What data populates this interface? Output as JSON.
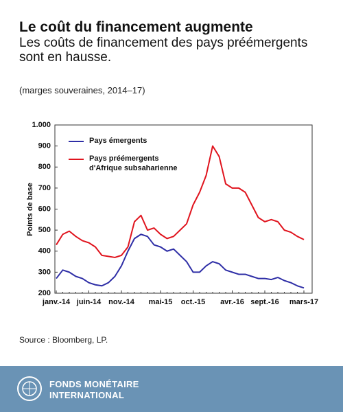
{
  "header": {
    "title": "Le coût du financement augmente",
    "subtitle": "Les coûts de financement des pays préémergents sont en hausse.",
    "note": "(marges souveraines, 2014–17)"
  },
  "chart_data": {
    "type": "line",
    "ylabel": "Points de base",
    "categories": [
      "janv.-14",
      null,
      null,
      null,
      null,
      "juin-14",
      null,
      null,
      null,
      null,
      "nov.-14",
      null,
      null,
      null,
      null,
      null,
      "mai-15",
      null,
      null,
      null,
      null,
      "oct.-15",
      null,
      null,
      null,
      null,
      null,
      "avr.-16",
      null,
      null,
      null,
      null,
      "sept.-16",
      null,
      null,
      null,
      null,
      null,
      "mars-17"
    ],
    "series": [
      {
        "name": "Pays émergents",
        "color": "#2e2ea6",
        "values": [
          270,
          310,
          300,
          280,
          270,
          250,
          240,
          235,
          250,
          280,
          330,
          400,
          460,
          480,
          470,
          430,
          420,
          400,
          410,
          380,
          350,
          300,
          300,
          330,
          350,
          340,
          310,
          300,
          290,
          290,
          280,
          270,
          270,
          265,
          275,
          260,
          250,
          235,
          225
        ]
      },
      {
        "name": "Pays préémergents d'Afrique subsaharienne",
        "color": "#e0141e",
        "values": [
          430,
          480,
          495,
          470,
          450,
          440,
          420,
          380,
          375,
          370,
          380,
          420,
          540,
          570,
          500,
          510,
          480,
          460,
          470,
          500,
          530,
          620,
          680,
          760,
          900,
          850,
          720,
          700,
          700,
          680,
          620,
          560,
          540,
          550,
          540,
          500,
          490,
          470,
          455
        ]
      }
    ],
    "ylim": [
      200,
      1000
    ],
    "yticks": [
      200,
      300,
      400,
      500,
      600,
      700,
      800,
      900,
      {
        "value": 1000,
        "label": "1.000"
      }
    ],
    "legend": "upper-left"
  },
  "footer": {
    "source": "Source : Bloomberg, LP.",
    "org_line1": "FONDS MONÉTAIRE",
    "org_line2": "INTERNATIONAL"
  }
}
